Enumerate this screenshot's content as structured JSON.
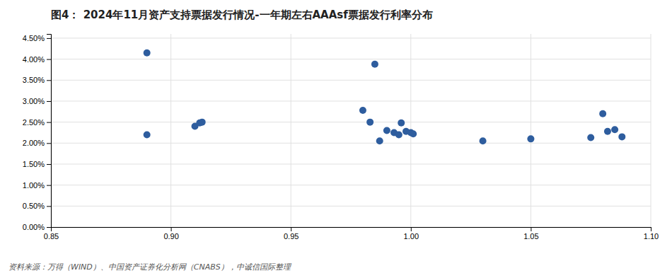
{
  "chart_data": {
    "type": "scatter",
    "title": "图4： 2024年11月资产支持票据发行情况-一年期左右AAAsf票据发行利率分布",
    "annotations": [
      "资料来源：万得（WIND）、中国资产证券化分析网（CNABS），中诚信国际整理"
    ],
    "x": [
      0.89,
      0.89,
      0.91,
      0.912,
      0.913,
      0.98,
      0.983,
      0.985,
      0.987,
      0.99,
      0.993,
      0.995,
      0.996,
      0.998,
      1.0,
      1.001,
      1.03,
      1.05,
      1.075,
      1.08,
      1.082,
      1.085,
      1.088
    ],
    "values": [
      0.0415,
      0.022,
      0.024,
      0.0248,
      0.025,
      0.0278,
      0.025,
      0.0388,
      0.0205,
      0.023,
      0.0225,
      0.022,
      0.0248,
      0.0228,
      0.0225,
      0.0222,
      0.0205,
      0.021,
      0.0213,
      0.027,
      0.0228,
      0.0232,
      0.0215
    ],
    "color": "#2E5D9E",
    "xlim": [
      0.85,
      1.1
    ],
    "ylim": [
      0.0,
      0.046
    ],
    "xticks": [
      0.85,
      {
        "value": 0.9,
        "label": "0.90"
      },
      0.95,
      {
        "value": 1.0,
        "label": "1.00"
      },
      1.05,
      {
        "value": 1.1,
        "label": "1.10"
      }
    ],
    "yticks": [
      {
        "value": 0.0,
        "label": "0.00%"
      },
      {
        "value": 0.005,
        "label": "0.50%"
      },
      {
        "value": 0.01,
        "label": "1.00%"
      },
      {
        "value": 0.015,
        "label": "1.50%"
      },
      {
        "value": 0.02,
        "label": "2.00%"
      },
      {
        "value": 0.025,
        "label": "2.50%"
      },
      {
        "value": 0.03,
        "label": "3.00%"
      },
      {
        "value": 0.035,
        "label": "3.50%"
      },
      {
        "value": 0.04,
        "label": "4.00%"
      },
      {
        "value": 0.045,
        "label": "4.50%"
      }
    ],
    "grid": true
  }
}
